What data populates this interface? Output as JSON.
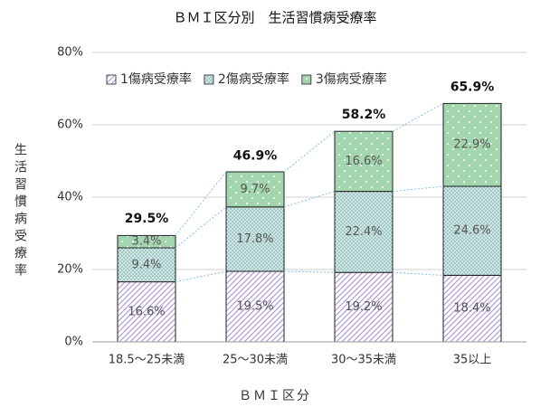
{
  "chart_data": {
    "type": "stacked_bar",
    "title": "ＢＭＩ区分別　生活習慣病受療率",
    "x_label": "ＢＭＩ区分",
    "y_label": "生活習慣病受療率",
    "categories": [
      "18.5～25未満",
      "25～30未満",
      "30～35未満",
      "35以上"
    ],
    "series": [
      {
        "name": "1傷病受療率",
        "color": "#a98fd6",
        "values": [
          16.6,
          19.5,
          19.2,
          18.4
        ],
        "value_labels": [
          "16.6%",
          "19.5%",
          "19.2%",
          "18.4%"
        ]
      },
      {
        "name": "2傷病受療率",
        "color": "#cfe6e4",
        "values": [
          9.4,
          17.8,
          22.4,
          24.6
        ],
        "value_labels": [
          "9.4%",
          "17.8%",
          "22.4%",
          "24.6%"
        ]
      },
      {
        "name": "3傷病受療率",
        "color": "#a3d6ae",
        "values": [
          3.4,
          9.7,
          16.6,
          22.9
        ],
        "value_labels": [
          "3.4%",
          "9.7%",
          "16.6%",
          "22.9%"
        ]
      }
    ],
    "totals": [
      29.5,
      46.9,
      58.2,
      65.9
    ],
    "totals_labels": [
      "29.5%",
      "46.9%",
      "58.2%",
      "65.9%"
    ],
    "ylim": [
      0,
      80
    ],
    "yticks": [
      {
        "value": 0,
        "label": "0%"
      },
      {
        "value": 20,
        "label": "20%"
      },
      {
        "value": 40,
        "label": "40%"
      },
      {
        "value": 60,
        "label": "60%"
      },
      {
        "value": 80,
        "label": "80%"
      }
    ],
    "grid": true,
    "legend": "top-left"
  }
}
